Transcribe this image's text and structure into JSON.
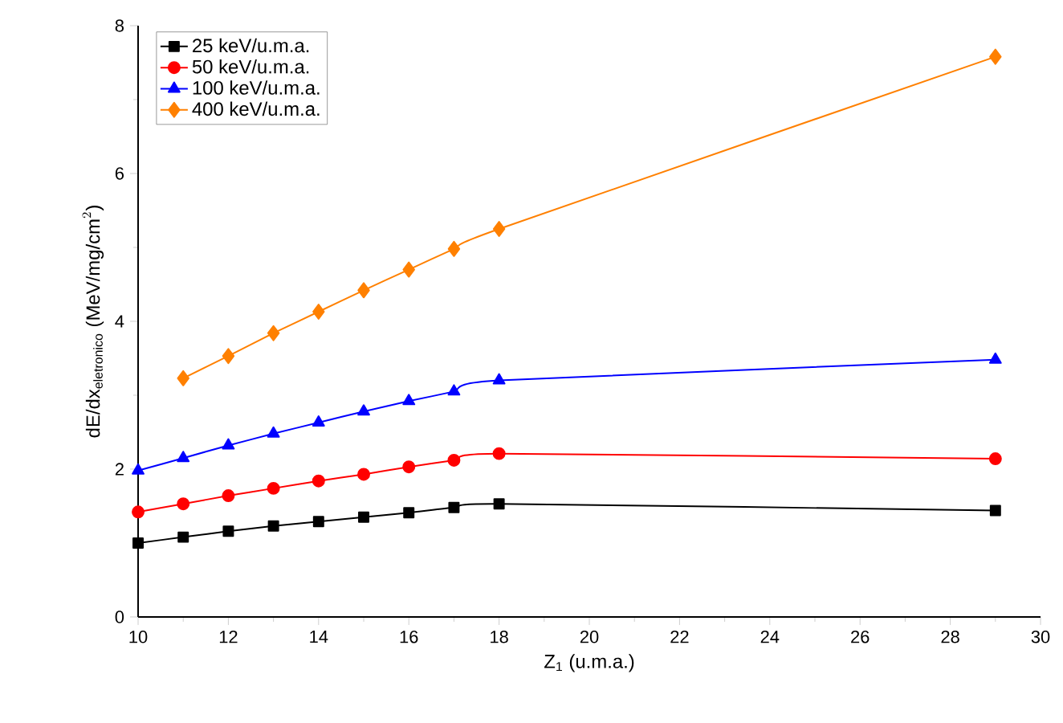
{
  "chart_data": {
    "type": "line",
    "xlabel": "Z$_{1}$ (u.m.a.)",
    "ylabel": "\\text{dE/dx}_{\\text{eletronico}}\\text{ (MeV/mg/cm}^{2}\\text{)}",
    "x": [
      10,
      11,
      12,
      13,
      14,
      15,
      16,
      17,
      18,
      29
    ],
    "series": [
      {
        "name": "25 keV/u.m.a.",
        "color": "#000000",
        "marker": "square",
        "values": [
          1.0,
          1.08,
          1.16,
          1.23,
          1.29,
          1.35,
          1.41,
          1.48,
          1.53,
          1.44
        ]
      },
      {
        "name": "50 keV/u.m.a.",
        "color": "#ff0000",
        "marker": "circle",
        "values": [
          1.42,
          1.53,
          1.64,
          1.74,
          1.84,
          1.93,
          2.03,
          2.12,
          2.21,
          2.14
        ]
      },
      {
        "name": "100 keV/u.m.a.",
        "color": "#0000ff",
        "marker": "triangle",
        "values": [
          1.98,
          2.15,
          2.32,
          2.48,
          2.63,
          2.78,
          2.92,
          3.05,
          3.2,
          3.48
        ]
      },
      {
        "name": "400 keV/u.m.a.",
        "color": "#ff8000",
        "marker": "diamond",
        "values": [
          null,
          3.23,
          3.53,
          3.84,
          4.13,
          4.42,
          4.7,
          4.98,
          5.25,
          7.58
        ]
      }
    ],
    "xlim": [
      10,
      30
    ],
    "xticks": [
      10,
      12,
      14,
      16,
      18,
      20,
      22,
      24,
      26,
      28,
      30
    ],
    "ylim": [
      0,
      8
    ],
    "yticks": [
      0,
      2,
      4,
      6,
      8
    ],
    "legend": "top left",
    "line_style": "solid"
  }
}
